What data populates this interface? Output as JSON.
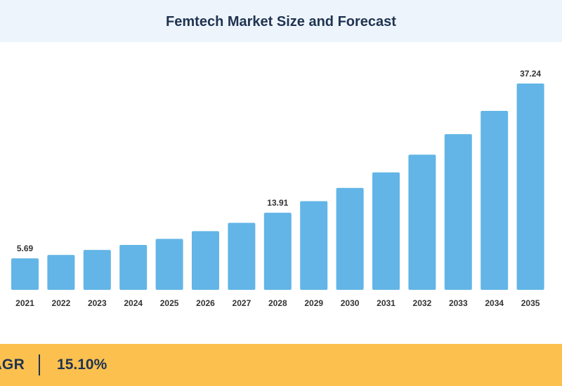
{
  "header": {
    "title": "Femtech Market Size and Forecast"
  },
  "chart_data": {
    "type": "bar",
    "title": "Femtech Market Size and Forecast",
    "xlabel": "",
    "ylabel": "",
    "grid": false,
    "legend": "none",
    "categories": [
      "2021",
      "2022",
      "2023",
      "2024",
      "2025",
      "2026",
      "2027",
      "2028",
      "2029",
      "2030",
      "2031",
      "2032",
      "2033",
      "2034",
      "2035"
    ],
    "values": [
      5.69,
      6.3,
      7.2,
      8.1,
      9.2,
      10.6,
      12.1,
      13.91,
      16.0,
      18.4,
      21.2,
      24.4,
      28.1,
      32.3,
      37.24
    ],
    "data_labels": [
      {
        "index": 0,
        "text": "5.69"
      },
      {
        "index": 7,
        "text": "13.91"
      },
      {
        "index": 14,
        "text": "37.24"
      }
    ],
    "ylim": [
      0,
      37.24
    ],
    "bar_color": "#62b5e6",
    "text_color": "#333333"
  },
  "footer": {
    "cagr_label": "CAGR",
    "cagr_value": "15.10%",
    "background_color": "#fcc04f"
  }
}
